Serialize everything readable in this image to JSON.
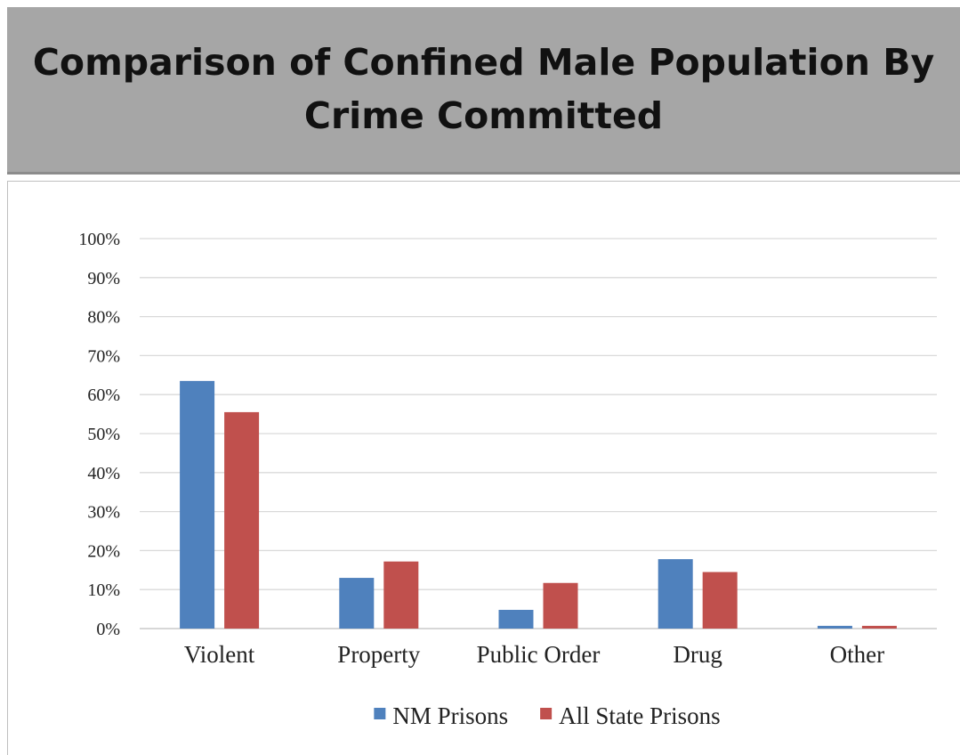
{
  "header": {
    "title": "Comparison of Confined Male Population By\nCrime Committed"
  },
  "chart_data": {
    "type": "bar",
    "title": "Comparison of Confined Male Population By Crime Committed",
    "categories": [
      "Violent",
      "Property",
      "Public Order",
      "Drug",
      "Other"
    ],
    "series": [
      {
        "name": "NM Prisons",
        "color": "#4f81bd",
        "values": [
          63.5,
          13,
          4.8,
          17.8,
          0.7
        ]
      },
      {
        "name": "All State Prisons",
        "color": "#c0504d",
        "values": [
          55.5,
          17.2,
          11.7,
          14.5,
          0.7
        ]
      }
    ],
    "y_ticks": [
      "0%",
      "10%",
      "20%",
      "30%",
      "40%",
      "50%",
      "60%",
      "70%",
      "80%",
      "90%",
      "100%"
    ],
    "ylim": [
      0,
      100
    ],
    "y_unit": "%",
    "grid": true,
    "legend_position": "bottom"
  }
}
